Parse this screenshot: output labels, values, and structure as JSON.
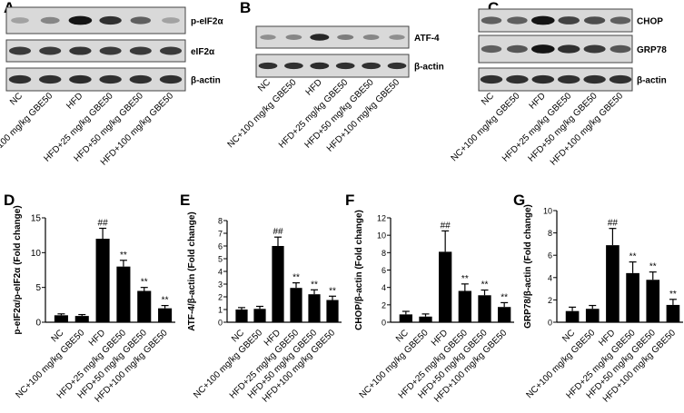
{
  "blots": [
    {
      "letter": "A",
      "bands": [
        "p-eIF2α",
        "eIF2α",
        "β-actin"
      ],
      "intensity": [
        [
          0.2,
          0.35,
          0.95,
          0.8,
          0.55,
          0.2
        ],
        [
          0.75,
          0.75,
          0.78,
          0.75,
          0.75,
          0.75
        ],
        [
          0.8,
          0.8,
          0.82,
          0.8,
          0.8,
          0.8
        ]
      ],
      "lanes": [
        "NC",
        "NC+100 mg/kg GBE50",
        "HFD",
        "HFD+25 mg/kg GBE50",
        "HFD+50 mg/kg GBE50",
        "HFD+100 mg/kg GBE50"
      ]
    },
    {
      "letter": "B",
      "bands": [
        "ATF-4",
        "β-actin"
      ],
      "intensity": [
        [
          0.3,
          0.35,
          0.85,
          0.4,
          0.35,
          0.3
        ],
        [
          0.8,
          0.8,
          0.82,
          0.8,
          0.8,
          0.8
        ]
      ],
      "lanes": [
        "NC",
        "NC+100 mg/kg GBE50",
        "HFD",
        "HFD+25 mg/kg GBE50",
        "HFD+50 mg/kg GBE50",
        "HFD+100 mg/kg GBE50"
      ]
    },
    {
      "letter": "C",
      "bands": [
        "CHOP",
        "GRP78",
        "β-actin"
      ],
      "intensity": [
        [
          0.55,
          0.55,
          0.95,
          0.7,
          0.65,
          0.55
        ],
        [
          0.55,
          0.6,
          0.95,
          0.8,
          0.75,
          0.6
        ],
        [
          0.8,
          0.8,
          0.82,
          0.8,
          0.8,
          0.8
        ]
      ],
      "lanes": [
        "NC",
        "NC+100 mg/kg GBE50",
        "HFD",
        "HFD+25 mg/kg GBE50",
        "HFD+50 mg/kg GBE50",
        "HFD+100 mg/kg GBE50"
      ]
    }
  ],
  "chart_data": [
    {
      "type": "bar",
      "letter": "D",
      "ylabel": "p-eIF2α/p-eIF2α (Fold change)",
      "ylim": [
        0,
        15
      ],
      "yticks": [
        0,
        5,
        10,
        15
      ],
      "categories": [
        "NC",
        "NC+100 mg/kg GBE50",
        "HFD",
        "HFD+25 mg/kg GBE50",
        "HFD+50 mg/kg GBE50",
        "HFD+100 mg/kg GBE50"
      ],
      "values": [
        1.0,
        0.9,
        12.0,
        8.0,
        4.5,
        2.0
      ],
      "errors": [
        0.2,
        0.2,
        1.5,
        0.9,
        0.5,
        0.4
      ],
      "annotations": [
        "",
        "",
        "##",
        "**",
        "**",
        "**"
      ]
    },
    {
      "type": "bar",
      "letter": "E",
      "ylabel": "ATF-4/β-actin (Fold change)",
      "ylim": [
        0,
        8
      ],
      "yticks": [
        0,
        1,
        2,
        3,
        4,
        5,
        6,
        7,
        8
      ],
      "categories": [
        "NC",
        "NC+100 mg/kg GBE50",
        "HFD",
        "HFD+25 mg/kg GBE50",
        "HFD+50 mg/kg GBE50",
        "HFD+100 mg/kg GBE50"
      ],
      "values": [
        1.0,
        1.05,
        6.0,
        2.7,
        2.2,
        1.75
      ],
      "errors": [
        0.15,
        0.2,
        0.7,
        0.4,
        0.35,
        0.3
      ],
      "annotations": [
        "",
        "",
        "##",
        "**",
        "**",
        "**"
      ]
    },
    {
      "type": "bar",
      "letter": "F",
      "ylabel": "CHOP/β-actin (Fold change)",
      "ylim": [
        0,
        12
      ],
      "yticks": [
        0,
        2,
        4,
        6,
        8,
        10,
        12
      ],
      "categories": [
        "NC",
        "NC+100 mg/kg GBE50",
        "HFD",
        "HFD+25 mg/kg GBE50",
        "HFD+50 mg/kg GBE50",
        "HFD+100 mg/kg GBE50"
      ],
      "values": [
        0.9,
        0.65,
        8.1,
        3.6,
        3.1,
        1.75
      ],
      "errors": [
        0.35,
        0.3,
        2.4,
        0.8,
        0.6,
        0.5
      ],
      "annotations": [
        "",
        "",
        "##",
        "**",
        "**",
        "**"
      ]
    },
    {
      "type": "bar",
      "letter": "G",
      "ylabel": "GRP78/β-actin (Fold change)",
      "ylim": [
        0,
        10
      ],
      "yticks": [
        0,
        2,
        4,
        6,
        8,
        10
      ],
      "categories": [
        "NC",
        "NC+100 mg/kg GBE50",
        "HFD",
        "HFD+25 mg/kg GBE50",
        "HFD+50 mg/kg GBE50",
        "HFD+100 mg/kg GBE50"
      ],
      "values": [
        1.0,
        1.2,
        6.9,
        4.4,
        3.8,
        1.55
      ],
      "errors": [
        0.35,
        0.3,
        1.5,
        1.0,
        0.7,
        0.5
      ],
      "annotations": [
        "",
        "",
        "##",
        "**",
        "**",
        "**"
      ]
    }
  ]
}
